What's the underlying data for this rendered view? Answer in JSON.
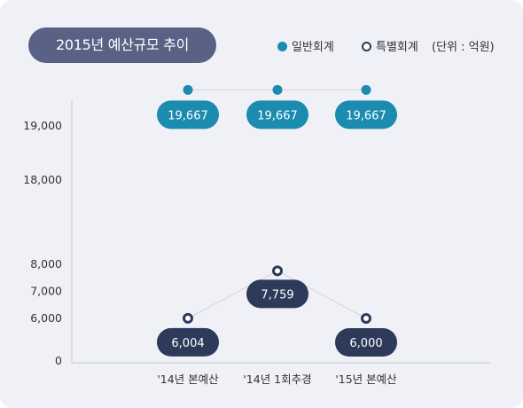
{
  "title": "2015년 예산규모 추이",
  "legend": {
    "general": "일반회계",
    "special": "특별회계",
    "unit": "(단위 : 억원)"
  },
  "colors": {
    "general": "#1b8bb0",
    "special": "#2e3a5a",
    "title_bg": "#596185",
    "background": "#f0f1f6"
  },
  "chart_data": {
    "type": "line",
    "title": "2015년 예산규모 추이",
    "xlabel": "",
    "ylabel": "",
    "unit": "억원",
    "x": [
      "'14년 본예산",
      "'14년 1회추경",
      "'15년 본예산"
    ],
    "y_ticks": [
      "0",
      "6,000",
      "7,000",
      "8,000",
      "18,000",
      "19,000"
    ],
    "axis_break": true,
    "series": [
      {
        "name": "일반회계",
        "values": [
          19667,
          19667,
          19667
        ],
        "labels": [
          "19,667",
          "19,667",
          "19,667"
        ]
      },
      {
        "name": "특별회계",
        "values": [
          6004,
          7759,
          6000
        ],
        "labels": [
          "6,004",
          "7,759",
          "6,000"
        ]
      }
    ],
    "grid": false,
    "legend_position": "top-right"
  }
}
